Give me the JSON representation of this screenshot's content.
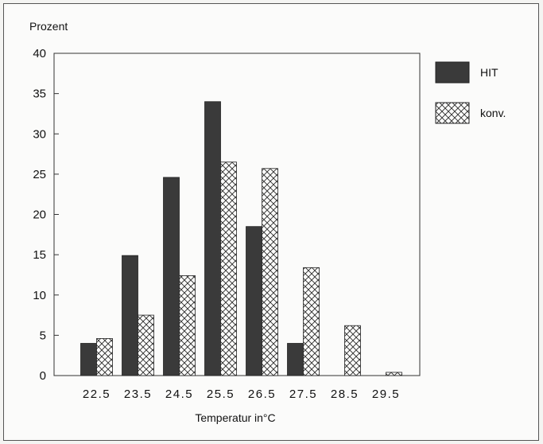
{
  "chart_data": {
    "type": "bar",
    "ylabel": "Prozent",
    "xlabel": "Temperatur in°C",
    "ylim": [
      0,
      40
    ],
    "yticks": [
      "0",
      "5",
      "10",
      "15",
      "20",
      "25",
      "30",
      "35",
      "40"
    ],
    "categories": [
      "22.5",
      "23.5",
      "24.5",
      "25.5",
      "26.5",
      "27.5",
      "28.5",
      "29.5"
    ],
    "series": [
      {
        "name": "HIT",
        "fill": "solid",
        "color": "#3a3a3a",
        "values": [
          4.0,
          14.9,
          24.6,
          34.0,
          18.5,
          4.0,
          0.0,
          0.0
        ]
      },
      {
        "name": "konv.",
        "fill": "crosshatch",
        "color": "#2a2a2a",
        "values": [
          4.6,
          7.5,
          12.4,
          26.5,
          25.7,
          13.4,
          6.2,
          0.4
        ]
      }
    ],
    "legend_position": "right",
    "grid": false
  }
}
